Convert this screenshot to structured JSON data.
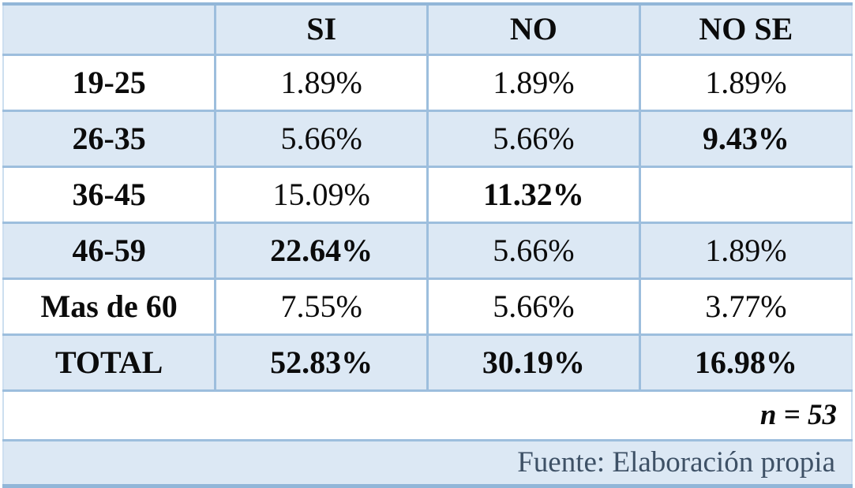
{
  "table": {
    "headers": [
      "",
      "SI",
      "NO",
      "NO SE"
    ],
    "rows": [
      {
        "label": "19-25",
        "si": "1.89%",
        "no": "1.89%",
        "nose": "1.89%"
      },
      {
        "label": "26-35",
        "si": "5.66%",
        "no": "5.66%",
        "nose": "9.43%"
      },
      {
        "label": "36-45",
        "si": "15.09%",
        "no": "11.32%",
        "nose": ""
      },
      {
        "label": "46-59",
        "si": "22.64%",
        "no": "5.66%",
        "nose": "1.89%"
      },
      {
        "label": "Mas de 60",
        "si": "7.55%",
        "no": "5.66%",
        "nose": "3.77%"
      },
      {
        "label": "TOTAL",
        "si": "52.83%",
        "no": "30.19%",
        "nose": "16.98%"
      }
    ],
    "sample_size": "n = 53",
    "source": "Fuente: Elaboración propia"
  },
  "colors": {
    "row_shade": "#dce8f4",
    "border": "#9dbedd",
    "border_strong": "#92b6d8",
    "source_text": "#3e5166"
  }
}
